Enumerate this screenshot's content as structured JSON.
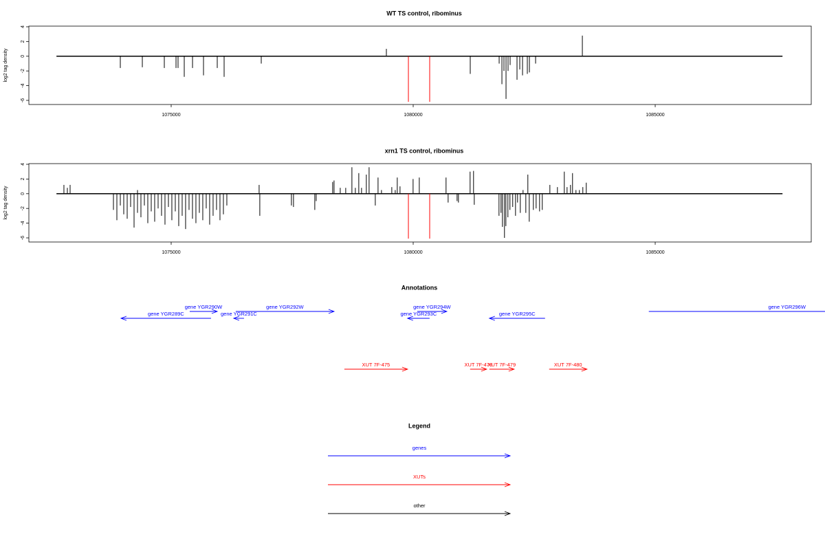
{
  "chart_data": [
    {
      "type": "spike",
      "title": "WT TS control, ribominus",
      "ylabel": "log2 tag density",
      "xlim": [
        1072060,
        1088224
      ],
      "ylim": [
        -6.56,
        4.09
      ],
      "xticks": [
        1075000,
        1080000,
        1085000
      ],
      "yticks": [
        4,
        2,
        0,
        -2,
        -4,
        -6
      ],
      "baseline": [
        1072630,
        1087630
      ],
      "series": [
        {
          "color": "#000000",
          "x": [
            1073949,
            1074404,
            1074858,
            1075100,
            1075142,
            1075270,
            1075441,
            1075668,
            1075952,
            1076094,
            1076861,
            1079446,
            1081179,
            1081776,
            1081833,
            1081875,
            1081918,
            1081960,
            1082003,
            1082145,
            1082202,
            1082259,
            1082358,
            1082401,
            1082529,
            1083495
          ],
          "values": [
            -1.6,
            -1.5,
            -1.6,
            -1.6,
            -1.6,
            -2.8,
            -1.6,
            -2.6,
            -1.6,
            -2.8,
            -1.0,
            1.0,
            -2.4,
            -1.0,
            -3.8,
            -2.0,
            -5.8,
            -2.0,
            -1.2,
            -3.2,
            -1.8,
            -2.6,
            -2.4,
            -2.2,
            -1.0,
            2.8
          ]
        },
        {
          "color": "#ff0000",
          "x": [
            1079901,
            1080341
          ],
          "values": [
            -6.2,
            -6.2
          ]
        }
      ]
    },
    {
      "type": "spike",
      "title": "xrn1 TS control, ribominus",
      "ylabel": "log2 tag density",
      "xlim": [
        1072060,
        1088224
      ],
      "ylim": [
        -6.56,
        4.09
      ],
      "xticks": [
        1075000,
        1080000,
        1085000
      ],
      "yticks": [
        4,
        2,
        0,
        -2,
        -4,
        -6
      ],
      "baseline": [
        1072630,
        1087630
      ],
      "series": [
        {
          "color": "#000000",
          "x": [
            1072784,
            1072855,
            1072912,
            1074304,
            1076817,
            1078336,
            1078365,
            1078493,
            1078606,
            1078734,
            1078805,
            1078876,
            1078933,
            1079032,
            1079089,
            1079274,
            1079345,
            1079558,
            1079629,
            1079671,
            1079728,
            1079998,
            1080126,
            1080679,
            1081176,
            1081247,
            1082270,
            1082369,
            1082824,
            1082980,
            1083122,
            1083179,
            1083250,
            1083292,
            1083363,
            1083434,
            1083505,
            1083576,
            1073807,
            1073878,
            1073949,
            1074020,
            1074091,
            1074162,
            1074233,
            1074304,
            1074375,
            1074446,
            1074517,
            1074588,
            1074659,
            1074730,
            1074801,
            1074872,
            1074943,
            1075014,
            1075085,
            1075156,
            1075227,
            1075298,
            1075369,
            1075440,
            1075511,
            1075582,
            1075653,
            1075724,
            1075795,
            1075866,
            1075937,
            1076008,
            1076079,
            1076150,
            1076831,
            1077484,
            1077527,
            1077967,
            1077996,
            1079217,
            1080722,
            1080907,
            1080935,
            1081262,
            1081773,
            1081815,
            1081844,
            1081886,
            1081915,
            1081957,
            1081999,
            1082056,
            1082114,
            1082156,
            1082213,
            1082327,
            1082398,
            1082483,
            1082540,
            1082611,
            1082667
          ],
          "values": [
            1.2,
            0.8,
            1.2,
            0.5,
            1.2,
            1.6,
            1.8,
            0.8,
            0.8,
            3.6,
            0.8,
            2.8,
            0.8,
            2.6,
            3.6,
            2.2,
            0.5,
            0.9,
            0.5,
            2.2,
            1.0,
            2.0,
            2.2,
            2.2,
            3.0,
            3.1,
            0.5,
            2.6,
            1.2,
            0.9,
            3.0,
            0.9,
            1.2,
            2.8,
            0.5,
            0.5,
            0.9,
            1.5,
            -2.2,
            -3.6,
            -1.6,
            -2.8,
            -3.4,
            -1.8,
            -4.6,
            -2.6,
            -3.2,
            -1.6,
            -4.0,
            -2.4,
            -3.8,
            -2.0,
            -3.0,
            -4.2,
            -1.8,
            -3.6,
            -2.4,
            -4.4,
            -3.0,
            -4.8,
            -2.2,
            -3.4,
            -4.0,
            -2.6,
            -3.6,
            -2.0,
            -4.2,
            -3.0,
            -2.2,
            -3.6,
            -2.8,
            -1.6,
            -3.0,
            -1.6,
            -1.8,
            -2.2,
            -1.0,
            -1.6,
            -1.2,
            -1.0,
            -1.2,
            -1.5,
            -3.0,
            -2.6,
            -4.5,
            -6.0,
            -4.4,
            -3.2,
            -2.2,
            -1.8,
            -3.0,
            -1.2,
            -2.6,
            -2.6,
            -3.8,
            -2.2,
            -2.0,
            -2.4,
            -2.2
          ]
        },
        {
          "color": "#ff0000",
          "x": [
            1079901,
            1080341
          ],
          "values": [
            -6.1,
            -6.1
          ]
        }
      ]
    }
  ],
  "annotations": {
    "title": "Annotations",
    "genes": {
      "color": "#0000ff",
      "items": [
        {
          "label": "gene YGR289C",
          "start": 1073963,
          "end": 1075823,
          "strand": "-"
        },
        {
          "label": "gene YGR290W",
          "start": 1075383,
          "end": 1075951,
          "strand": "+"
        },
        {
          "label": "gene YGR291C",
          "start": 1076292,
          "end": 1076505,
          "strand": "-"
        },
        {
          "label": "gene YGR292W",
          "start": 1076334,
          "end": 1078365,
          "strand": "+"
        },
        {
          "label": "gene YGR293C",
          "start": 1079884,
          "end": 1080339,
          "strand": "-"
        },
        {
          "label": "gene YGR294W",
          "start": 1080083,
          "end": 1080694,
          "strand": "+"
        },
        {
          "label": "gene YGR295C",
          "start": 1081574,
          "end": 1082724,
          "strand": "-"
        },
        {
          "label": "gene YGR296W",
          "start": 1084868,
          "end": 1090577,
          "strand": "+"
        }
      ]
    },
    "xuts": {
      "color": "#ff0000",
      "items": [
        {
          "label": "XUT 7F-475",
          "start": 1078578,
          "end": 1079884,
          "strand": "+"
        },
        {
          "label": "XUT 7F-478",
          "start": 1081176,
          "end": 1081517,
          "strand": "+"
        },
        {
          "label": "XUT 7F-479",
          "start": 1081574,
          "end": 1082085,
          "strand": "+"
        },
        {
          "label": "XUT 7F-480",
          "start": 1082809,
          "end": 1083590,
          "strand": "+"
        }
      ]
    }
  },
  "legend": {
    "title": "Legend",
    "items": [
      {
        "name": "genes",
        "color": "#0000ff"
      },
      {
        "name": "XUTs",
        "color": "#ff0000"
      },
      {
        "name": "other",
        "color": "#000000"
      }
    ]
  }
}
